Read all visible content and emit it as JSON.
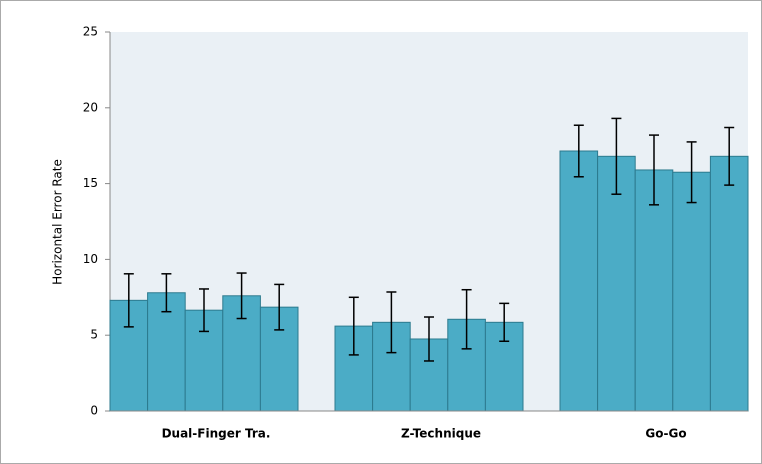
{
  "chart_data": {
    "type": "bar",
    "ylabel": "Horizontal Error Rate",
    "categories": [
      "Dual-Finger Tra.",
      "Z-Technique",
      "Go-Go"
    ],
    "color": "#4bacc6",
    "series": [
      {
        "values": [
          7.3,
          5.6,
          17.15
        ],
        "errors": [
          1.75,
          1.9,
          1.7
        ]
      },
      {
        "values": [
          7.8,
          5.85,
          16.8
        ],
        "errors": [
          1.25,
          2.0,
          2.5
        ]
      },
      {
        "values": [
          6.65,
          4.75,
          15.9
        ],
        "errors": [
          1.4,
          1.45,
          2.3
        ]
      },
      {
        "values": [
          7.6,
          6.05,
          15.75
        ],
        "errors": [
          1.5,
          1.95,
          2.0
        ]
      },
      {
        "values": [
          6.85,
          5.85,
          16.8
        ],
        "errors": [
          1.5,
          1.25,
          1.9
        ]
      }
    ],
    "ylim": [
      0,
      25
    ],
    "yticks": [
      0,
      5,
      10,
      15,
      20,
      25
    ]
  }
}
